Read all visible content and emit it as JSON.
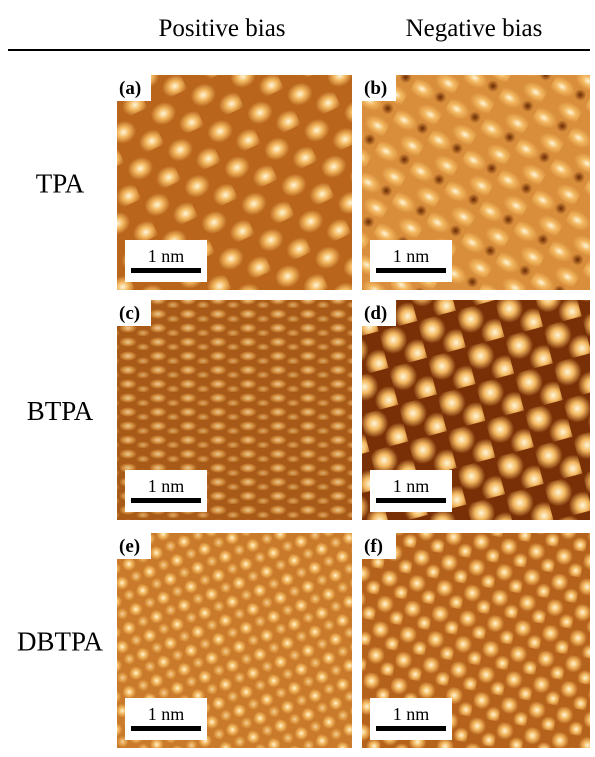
{
  "header": {
    "columns": [
      "Positive bias",
      "Negative bias"
    ]
  },
  "rows": [
    {
      "label": "TPA",
      "panels": [
        {
          "label": "(a)",
          "scale_bar": "1 nm"
        },
        {
          "label": "(b)",
          "scale_bar": "1 nm"
        }
      ]
    },
    {
      "label": "BTPA",
      "panels": [
        {
          "label": "(c)",
          "scale_bar": "1 nm"
        },
        {
          "label": "(d)",
          "scale_bar": "1 nm"
        }
      ]
    },
    {
      "label": "DBTPA",
      "panels": [
        {
          "label": "(e)",
          "scale_bar": "1 nm"
        },
        {
          "label": "(f)",
          "scale_bar": "1 nm"
        }
      ]
    }
  ]
}
